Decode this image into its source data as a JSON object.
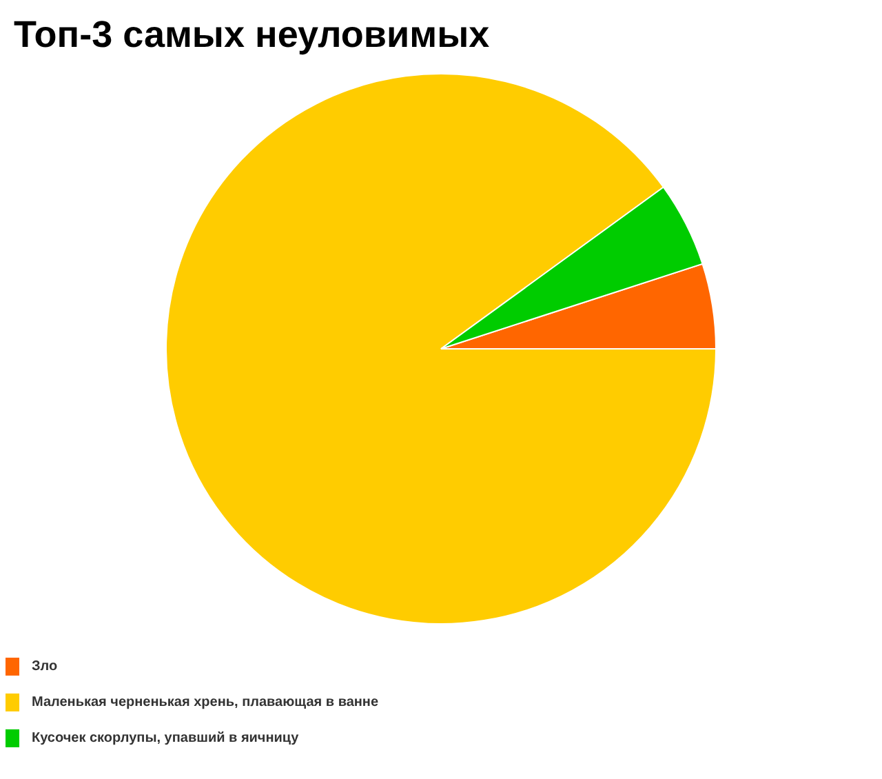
{
  "chart_data": {
    "type": "pie",
    "title": "Топ-3 самых неуловимых",
    "categories": [
      "Зло",
      "Маленькая черненькая хрень, плавающая в ванне",
      "Кусочек скорлупы, упавший в яичницу"
    ],
    "values": [
      5,
      90,
      5
    ],
    "colors": [
      "#ff6600",
      "#ffcc00",
      "#00cc00"
    ],
    "legend": "bottom left"
  }
}
